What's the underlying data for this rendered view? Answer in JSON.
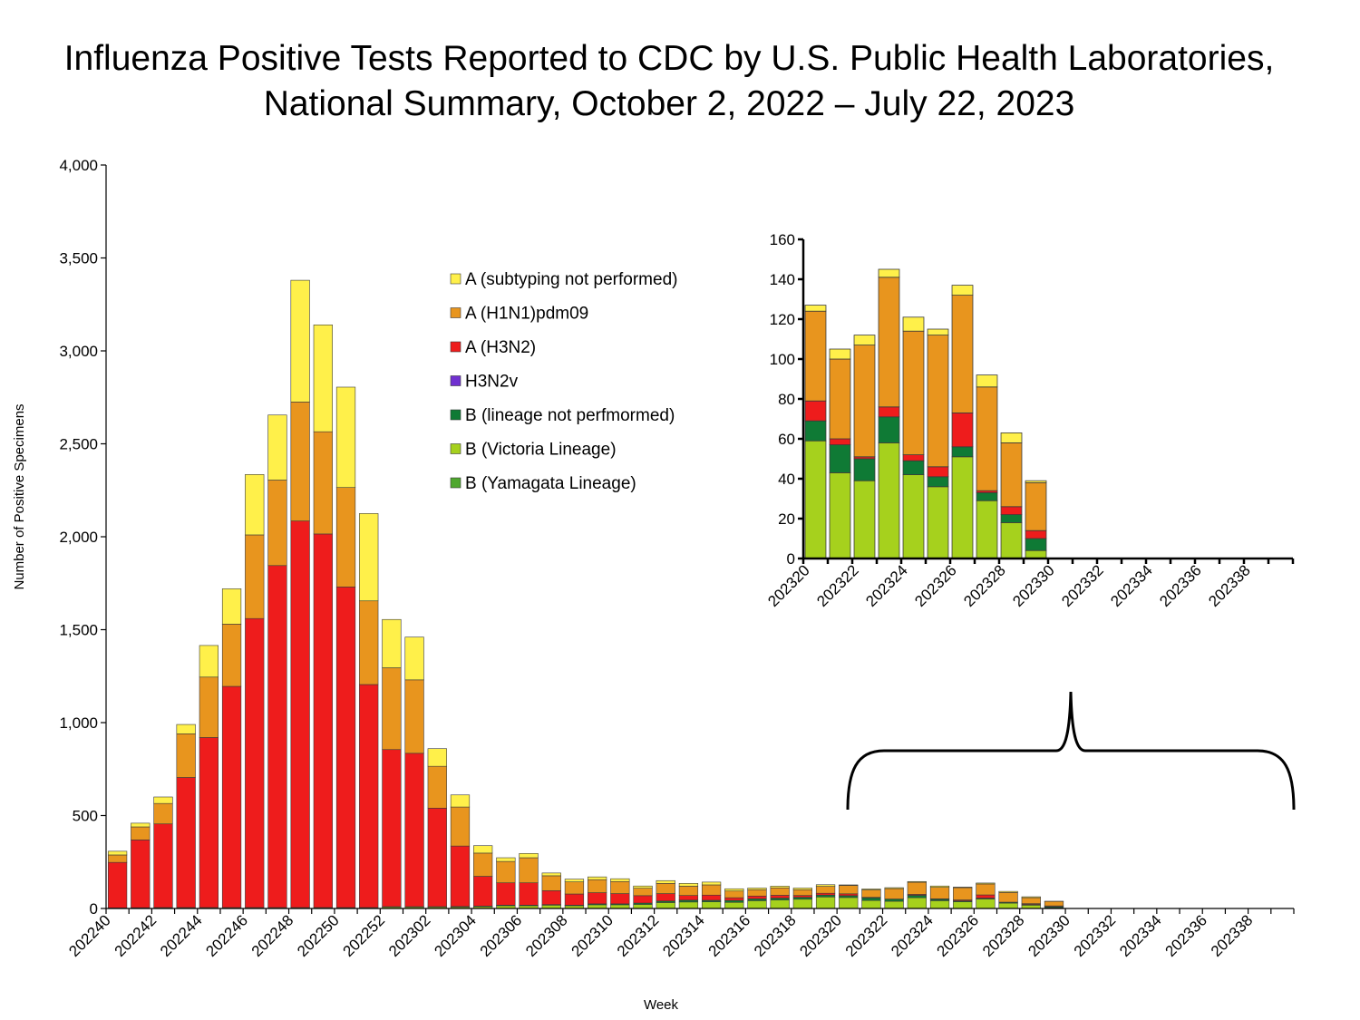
{
  "title": {
    "line1": "Influenza Positive Tests Reported to CDC by U.S. Public Health Laboratories,",
    "line2": "National Summary, October 2, 2022 – July 22, 2023"
  },
  "chart_data": [
    {
      "type": "bar",
      "stacked": true,
      "xlabel": "Week",
      "ylabel": "Number of Positive Specimens",
      "ylim": [
        0,
        4000
      ],
      "yticks": [
        0,
        500,
        1000,
        1500,
        2000,
        2500,
        3000,
        3500,
        4000
      ],
      "ytick_labels": [
        "0",
        "500",
        "1,000",
        "1,500",
        "2,000",
        "2,500",
        "3,000",
        "3,500",
        "4,000"
      ],
      "categories": [
        "202240",
        "202241",
        "202242",
        "202243",
        "202244",
        "202245",
        "202246",
        "202247",
        "202248",
        "202249",
        "202250",
        "202251",
        "202252",
        "202301",
        "202302",
        "202303",
        "202304",
        "202305",
        "202306",
        "202307",
        "202308",
        "202309",
        "202310",
        "202311",
        "202312",
        "202313",
        "202314",
        "202315",
        "202316",
        "202317",
        "202318",
        "202319",
        "202320",
        "202321",
        "202322",
        "202323",
        "202324",
        "202325",
        "202326",
        "202327",
        "202328",
        "202329",
        "202330",
        "202331",
        "202332",
        "202333",
        "202334",
        "202335",
        "202336",
        "202337",
        "202338",
        "202339"
      ],
      "tick_labels": [
        "202240",
        "202242",
        "202244",
        "202246",
        "202248",
        "202250",
        "202252",
        "202302",
        "202304",
        "202306",
        "202308",
        "202310",
        "202312",
        "202314",
        "202316",
        "202318",
        "202320",
        "202322",
        "202324",
        "202326",
        "202328",
        "202330",
        "202332",
        "202334",
        "202336",
        "202338"
      ],
      "legend_position": "top-center",
      "series": [
        {
          "name": "B (Yamagata Lineage)",
          "color": "#4ea72e",
          "values": [
            0,
            0,
            0,
            0,
            0,
            0,
            0,
            0,
            0,
            0,
            0,
            0,
            0,
            0,
            0,
            0,
            0,
            0,
            0,
            0,
            0,
            0,
            0,
            0,
            0,
            0,
            0,
            0,
            0,
            0,
            0,
            0,
            0,
            0,
            0,
            0,
            0,
            0,
            0,
            0,
            0,
            0,
            0,
            0,
            0,
            0,
            0,
            0,
            0,
            0,
            0,
            0
          ]
        },
        {
          "name": "B (Victoria Lineage)",
          "color": "#a6d11d",
          "values": [
            3,
            4,
            5,
            5,
            5,
            5,
            5,
            5,
            5,
            5,
            5,
            5,
            8,
            8,
            8,
            8,
            10,
            15,
            15,
            18,
            15,
            20,
            20,
            22,
            32,
            35,
            36,
            33,
            42,
            46,
            50,
            62,
            59,
            43,
            39,
            58,
            42,
            36,
            51,
            29,
            18,
            4,
            0,
            0,
            0,
            0,
            0,
            0,
            0,
            0,
            0,
            0
          ]
        },
        {
          "name": "B (lineage not perfmormed)",
          "color": "#0f7a35",
          "values": [
            0,
            0,
            0,
            0,
            0,
            0,
            0,
            0,
            0,
            0,
            0,
            0,
            2,
            2,
            2,
            3,
            3,
            3,
            3,
            3,
            3,
            5,
            5,
            7,
            8,
            10,
            8,
            10,
            10,
            10,
            10,
            10,
            10,
            14,
            11,
            13,
            7,
            5,
            5,
            4,
            4,
            6,
            0,
            0,
            0,
            0,
            0,
            0,
            0,
            0,
            0,
            0
          ]
        },
        {
          "name": "H3N2v",
          "color": "#7030d0",
          "values": [
            0,
            0,
            0,
            0,
            0,
            0,
            0,
            0,
            0,
            0,
            0,
            0,
            0,
            0,
            0,
            0,
            0,
            0,
            0,
            0,
            0,
            0,
            0,
            0,
            0,
            0,
            0,
            0,
            0,
            0,
            0,
            0,
            0,
            0,
            0,
            0,
            0,
            0,
            0,
            0,
            0,
            0,
            0,
            0,
            0,
            0,
            0,
            0,
            0,
            0,
            0,
            0
          ]
        },
        {
          "name": "A (H3N2)",
          "color": "#ee1c1c",
          "values": [
            245,
            365,
            450,
            700,
            915,
            1190,
            1555,
            1840,
            2080,
            2010,
            1725,
            1200,
            845,
            825,
            530,
            325,
            160,
            120,
            120,
            75,
            60,
            60,
            55,
            40,
            40,
            25,
            28,
            15,
            15,
            15,
            10,
            10,
            10,
            3,
            1,
            5,
            3,
            5,
            17,
            1,
            4,
            4,
            0,
            0,
            0,
            0,
            0,
            0,
            0,
            0,
            0,
            0
          ]
        },
        {
          "name": "A (H1N1)pdm09",
          "color": "#e8951e",
          "values": [
            40,
            70,
            110,
            235,
            325,
            335,
            450,
            460,
            640,
            550,
            535,
            450,
            440,
            395,
            225,
            210,
            125,
            115,
            135,
            80,
            65,
            70,
            65,
            40,
            55,
            50,
            55,
            36,
            34,
            40,
            31,
            37,
            45,
            40,
            56,
            65,
            62,
            66,
            59,
            52,
            32,
            24,
            0,
            0,
            0,
            0,
            0,
            0,
            0,
            0,
            0,
            0
          ]
        },
        {
          "name": "A (subtyping not performed)",
          "color": "#fff04a",
          "values": [
            20,
            20,
            35,
            50,
            170,
            190,
            325,
            350,
            655,
            575,
            540,
            470,
            260,
            230,
            95,
            65,
            40,
            20,
            23,
            15,
            15,
            15,
            15,
            12,
            15,
            15,
            15,
            12,
            9,
            9,
            9,
            9,
            3,
            5,
            5,
            4,
            7,
            3,
            5,
            6,
            5,
            1,
            0,
            0,
            0,
            0,
            0,
            0,
            0,
            0,
            0,
            0
          ]
        }
      ]
    },
    {
      "type": "bar",
      "stacked": true,
      "ylim": [
        0,
        160
      ],
      "yticks": [
        0,
        20,
        40,
        60,
        80,
        100,
        120,
        140,
        160
      ],
      "ytick_labels": [
        "0",
        "20",
        "40",
        "60",
        "80",
        "100",
        "120",
        "140",
        "160"
      ],
      "categories": [
        "202320",
        "202321",
        "202322",
        "202323",
        "202324",
        "202325",
        "202326",
        "202327",
        "202328",
        "202329",
        "202330",
        "202331",
        "202332",
        "202333",
        "202334",
        "202335",
        "202336",
        "202337",
        "202338",
        "202339"
      ],
      "tick_labels": [
        "202320",
        "202322",
        "202324",
        "202326",
        "202328",
        "202330",
        "202332",
        "202334",
        "202336",
        "202338"
      ],
      "series": [
        {
          "name": "B (Yamagata Lineage)",
          "color": "#4ea72e",
          "values": [
            0,
            0,
            0,
            0,
            0,
            0,
            0,
            0,
            0,
            0,
            0,
            0,
            0,
            0,
            0,
            0,
            0,
            0,
            0,
            0
          ]
        },
        {
          "name": "B (Victoria Lineage)",
          "color": "#a6d11d",
          "values": [
            59,
            43,
            39,
            58,
            42,
            36,
            51,
            29,
            18,
            4,
            0,
            0,
            0,
            0,
            0,
            0,
            0,
            0,
            0,
            0
          ]
        },
        {
          "name": "B (lineage not perfmormed)",
          "color": "#0f7a35",
          "values": [
            10,
            14,
            11,
            13,
            7,
            5,
            5,
            4,
            4,
            6,
            0,
            0,
            0,
            0,
            0,
            0,
            0,
            0,
            0,
            0
          ]
        },
        {
          "name": "H3N2v",
          "color": "#7030d0",
          "values": [
            0,
            0,
            0,
            0,
            0,
            0,
            0,
            0,
            0,
            0,
            0,
            0,
            0,
            0,
            0,
            0,
            0,
            0,
            0,
            0
          ]
        },
        {
          "name": "A (H3N2)",
          "color": "#ee1c1c",
          "values": [
            10,
            3,
            1,
            5,
            3,
            5,
            17,
            1,
            4,
            4,
            0,
            0,
            0,
            0,
            0,
            0,
            0,
            0,
            0,
            0
          ]
        },
        {
          "name": "A (H1N1)pdm09",
          "color": "#e8951e",
          "values": [
            45,
            40,
            56,
            65,
            62,
            66,
            59,
            52,
            32,
            24,
            0,
            0,
            0,
            0,
            0,
            0,
            0,
            0,
            0,
            0
          ]
        },
        {
          "name": "A (subtyping not performed)",
          "color": "#fff04a",
          "values": [
            3,
            5,
            5,
            4,
            7,
            3,
            5,
            6,
            5,
            1,
            0,
            0,
            0,
            0,
            0,
            0,
            0,
            0,
            0,
            0
          ]
        }
      ]
    }
  ],
  "legend": {
    "items": [
      {
        "label": "A (subtyping not performed)",
        "color": "#fff04a"
      },
      {
        "label": "A (H1N1)pdm09",
        "color": "#e8951e"
      },
      {
        "label": "A (H3N2)",
        "color": "#ee1c1c"
      },
      {
        "label": "H3N2v",
        "color": "#7030d0"
      },
      {
        "label": "B (lineage not perfmormed)",
        "color": "#0f7a35"
      },
      {
        "label": "B (Victoria Lineage)",
        "color": "#a6d11d"
      },
      {
        "label": "B (Yamagata Lineage)",
        "color": "#4ea72e"
      }
    ]
  }
}
